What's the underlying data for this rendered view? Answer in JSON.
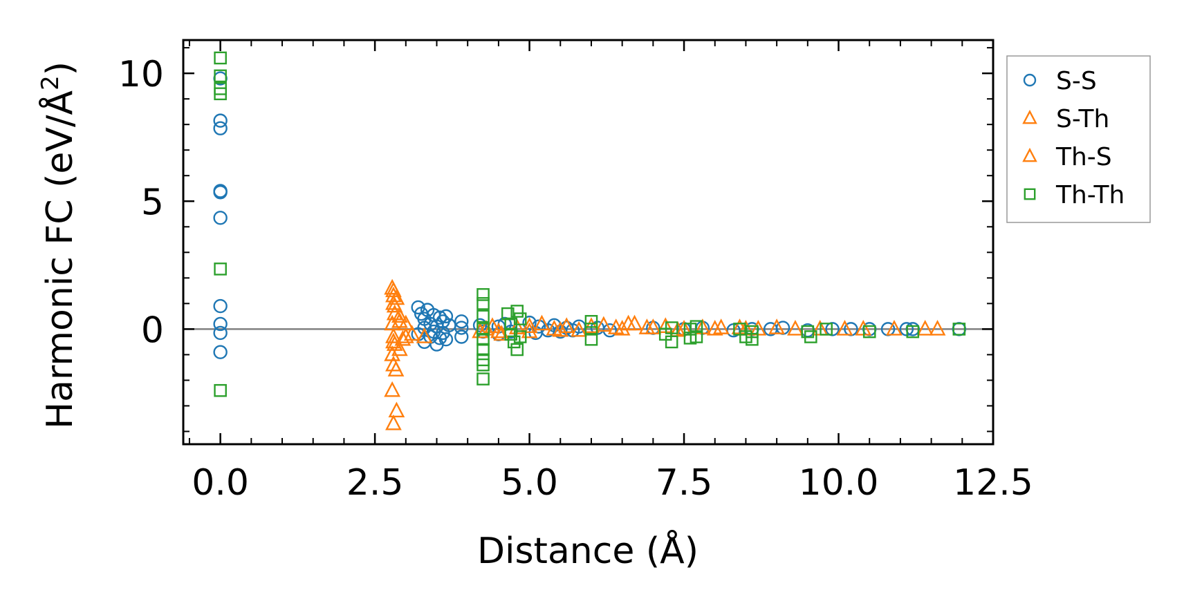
{
  "chart_data": {
    "type": "scatter",
    "title": "",
    "xlabel": "Distance (Å)",
    "ylabel_main": "Harmonic FC (eV/Å",
    "ylabel_sup": "2",
    "ylabel_close": ")",
    "xlim": [
      -0.6,
      12.5
    ],
    "ylim": [
      -4.5,
      11.3
    ],
    "xticks": [
      0.0,
      2.5,
      5.0,
      7.5,
      10.0,
      12.5
    ],
    "xtick_labels": [
      "0.0",
      "2.5",
      "5.0",
      "7.5",
      "10.0",
      "12.5"
    ],
    "yticks": [
      0,
      5,
      10
    ],
    "ytick_labels": [
      "0",
      "5",
      "10"
    ],
    "hline": 0,
    "legend_position": "outside-right-top",
    "series": [
      {
        "name": "S-S",
        "marker": "circle",
        "color": "#1f77b4",
        "points": [
          [
            0.0,
            9.8
          ],
          [
            0.0,
            8.15
          ],
          [
            0.0,
            7.85
          ],
          [
            0.0,
            5.4
          ],
          [
            0.0,
            5.35
          ],
          [
            0.0,
            4.35
          ],
          [
            0.0,
            0.9
          ],
          [
            0.0,
            0.2
          ],
          [
            0.0,
            -0.15
          ],
          [
            0.0,
            -0.9
          ],
          [
            3.2,
            0.85
          ],
          [
            3.25,
            0.6
          ],
          [
            3.3,
            0.4
          ],
          [
            3.3,
            -0.5
          ],
          [
            3.35,
            0.75
          ],
          [
            3.4,
            0.2
          ],
          [
            3.4,
            -0.3
          ],
          [
            3.45,
            0.55
          ],
          [
            3.5,
            -0.6
          ],
          [
            3.5,
            0.1
          ],
          [
            3.55,
            0.45
          ],
          [
            3.6,
            -0.15
          ],
          [
            3.6,
            0.3
          ],
          [
            3.65,
            -0.4
          ],
          [
            3.7,
            0.15
          ],
          [
            3.2,
            -0.2
          ],
          [
            3.3,
            0.05
          ],
          [
            3.45,
            -0.1
          ],
          [
            3.55,
            -0.35
          ],
          [
            3.65,
            0.5
          ],
          [
            3.9,
            0.3
          ],
          [
            3.9,
            0.05
          ],
          [
            3.9,
            -0.3
          ],
          [
            4.2,
            0.15
          ],
          [
            4.25,
            -0.1
          ],
          [
            4.5,
            0.1
          ],
          [
            4.5,
            -0.2
          ],
          [
            4.6,
            0.2
          ],
          [
            4.7,
            -0.1
          ],
          [
            5.0,
            0.25
          ],
          [
            5.1,
            -0.15
          ],
          [
            5.15,
            0.1
          ],
          [
            5.3,
            -0.05
          ],
          [
            5.4,
            0.15
          ],
          [
            5.5,
            -0.1
          ],
          [
            5.6,
            0.05
          ],
          [
            5.7,
            -0.05
          ],
          [
            5.8,
            0.1
          ],
          [
            6.1,
            0.05
          ],
          [
            6.3,
            -0.05
          ],
          [
            7.0,
            0.05
          ],
          [
            7.5,
            0.0
          ],
          [
            7.8,
            0.05
          ],
          [
            8.3,
            -0.05
          ],
          [
            8.6,
            0.0
          ],
          [
            8.9,
            0.0
          ],
          [
            9.1,
            0.05
          ],
          [
            9.5,
            -0.05
          ],
          [
            9.9,
            0.0
          ],
          [
            10.2,
            0.0
          ],
          [
            10.5,
            0.0
          ],
          [
            10.8,
            0.0
          ],
          [
            11.1,
            0.0
          ],
          [
            11.2,
            0.0
          ],
          [
            11.95,
            0.0
          ]
        ]
      },
      {
        "name": "S-Th",
        "marker": "triangle",
        "color": "#ff7f0e",
        "points": [
          [
            2.78,
            1.6
          ],
          [
            2.8,
            1.3
          ],
          [
            2.8,
            1.0
          ],
          [
            2.82,
            0.6
          ],
          [
            2.78,
            0.2
          ],
          [
            2.8,
            -0.3
          ],
          [
            2.82,
            -0.6
          ],
          [
            2.78,
            -1.0
          ],
          [
            2.8,
            -1.4
          ],
          [
            2.78,
            -2.4
          ],
          [
            2.85,
            -3.2
          ],
          [
            2.8,
            -3.7
          ],
          [
            2.85,
            1.2
          ],
          [
            2.9,
            0.5
          ],
          [
            2.9,
            -0.8
          ],
          [
            2.95,
            -0.4
          ],
          [
            3.0,
            0.2
          ],
          [
            3.1,
            -0.2
          ],
          [
            3.3,
            -0.3
          ],
          [
            4.2,
            -0.1
          ],
          [
            4.4,
            0.1
          ],
          [
            4.55,
            -0.2
          ],
          [
            4.8,
            0.05
          ],
          [
            5.0,
            -0.1
          ],
          [
            5.2,
            0.2
          ],
          [
            5.4,
            0.0
          ],
          [
            5.6,
            0.1
          ],
          [
            5.8,
            -0.05
          ],
          [
            6.2,
            0.15
          ],
          [
            6.5,
            0.0
          ],
          [
            6.7,
            0.2
          ],
          [
            6.9,
            0.05
          ],
          [
            7.2,
            0.1
          ],
          [
            7.5,
            0.0
          ],
          [
            7.8,
            0.05
          ],
          [
            8.0,
            0.0
          ],
          [
            8.4,
            0.05
          ],
          [
            8.7,
            0.0
          ]
        ]
      },
      {
        "name": "Th-S",
        "marker": "triangle",
        "color": "#ff7f0e",
        "points": [
          [
            2.8,
            1.5
          ],
          [
            2.82,
            0.9
          ],
          [
            2.8,
            -0.5
          ],
          [
            2.84,
            -1.6
          ],
          [
            2.9,
            0.3
          ],
          [
            3.0,
            -0.3
          ],
          [
            4.3,
            0.0
          ],
          [
            4.5,
            -0.1
          ],
          [
            5.0,
            0.1
          ],
          [
            5.5,
            -0.05
          ],
          [
            6.0,
            0.1
          ],
          [
            6.4,
            0.05
          ],
          [
            6.6,
            0.2
          ],
          [
            7.0,
            0.05
          ],
          [
            7.4,
            -0.05
          ],
          [
            8.1,
            0.05
          ],
          [
            8.5,
            0.0
          ],
          [
            9.0,
            0.05
          ],
          [
            9.3,
            0.0
          ],
          [
            9.7,
            0.0
          ],
          [
            10.1,
            0.0
          ],
          [
            10.4,
            0.0
          ],
          [
            10.9,
            0.0
          ],
          [
            11.4,
            0.0
          ],
          [
            11.6,
            0.0
          ]
        ]
      },
      {
        "name": "Th-Th",
        "marker": "square",
        "color": "#2ca02c",
        "points": [
          [
            0.0,
            10.6
          ],
          [
            0.0,
            9.9
          ],
          [
            0.0,
            9.4
          ],
          [
            0.0,
            9.2
          ],
          [
            0.0,
            2.35
          ],
          [
            0.0,
            -2.4
          ],
          [
            4.25,
            1.35
          ],
          [
            4.25,
            1.0
          ],
          [
            4.25,
            0.5
          ],
          [
            4.25,
            0.0
          ],
          [
            4.25,
            -0.4
          ],
          [
            4.25,
            -0.8
          ],
          [
            4.25,
            -1.2
          ],
          [
            4.25,
            -1.4
          ],
          [
            4.25,
            -1.95
          ],
          [
            4.65,
            0.6
          ],
          [
            4.7,
            0.2
          ],
          [
            4.7,
            -0.2
          ],
          [
            4.75,
            -0.5
          ],
          [
            4.8,
            0.7
          ],
          [
            4.8,
            -0.8
          ],
          [
            4.85,
            0.4
          ],
          [
            4.85,
            -0.3
          ],
          [
            6.0,
            0.3
          ],
          [
            6.0,
            0.0
          ],
          [
            6.0,
            -0.4
          ],
          [
            7.2,
            -0.2
          ],
          [
            7.3,
            0.05
          ],
          [
            7.3,
            -0.5
          ],
          [
            7.6,
            0.0
          ],
          [
            7.6,
            -0.35
          ],
          [
            7.7,
            0.1
          ],
          [
            7.7,
            -0.3
          ],
          [
            8.4,
            0.0
          ],
          [
            8.5,
            -0.3
          ],
          [
            8.6,
            -0.1
          ],
          [
            8.6,
            -0.4
          ],
          [
            9.5,
            -0.1
          ],
          [
            9.55,
            -0.3
          ],
          [
            9.8,
            0.0
          ],
          [
            10.5,
            -0.1
          ],
          [
            11.2,
            -0.1
          ],
          [
            11.95,
            0.0
          ]
        ]
      }
    ]
  }
}
